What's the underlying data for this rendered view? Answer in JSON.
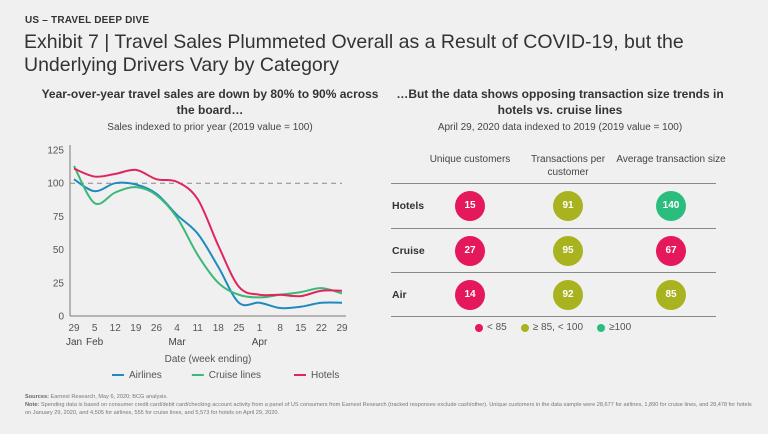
{
  "header": {
    "kicker": "US – TRAVEL DEEP DIVE",
    "title": "Exhibit 7 | Travel Sales Plummeted Overall as a Result of COVID-19, but the Underlying Drivers Vary by Category"
  },
  "left": {
    "heading": "Year-over-year travel sales are down by 80% to 90% across the board…",
    "subheading": "Sales indexed to prior year (2019 value = 100)"
  },
  "right": {
    "heading": "…But the data shows opposing transaction size trends in hotels vs. cruise lines",
    "subheading": "April 29, 2020 data indexed to 2019 (2019 value = 100)",
    "columns": [
      "Unique customers",
      "Transactions per customer",
      "Average transaction size"
    ],
    "rows": [
      {
        "label": "Hotels",
        "values": [
          15,
          91,
          140
        ],
        "bands": [
          "low",
          "mid",
          "high"
        ]
      },
      {
        "label": "Cruise",
        "values": [
          27,
          95,
          67
        ],
        "bands": [
          "low",
          "mid",
          "low"
        ]
      },
      {
        "label": "Air",
        "values": [
          14,
          92,
          85
        ],
        "bands": [
          "low",
          "mid",
          "mid"
        ]
      }
    ],
    "band_colors": {
      "low": "#e4185a",
      "mid": "#a9b320",
      "high": "#2bbd7e"
    },
    "legend": [
      {
        "band": "low",
        "label": "< 85"
      },
      {
        "band": "mid",
        "label": "≥ 85, < 100"
      },
      {
        "band": "high",
        "label": "≥100"
      }
    ]
  },
  "chart_data": {
    "type": "line",
    "title": "Year-over-year travel sales are down by 80% to 90% across the board…",
    "subtitle": "Sales indexed to prior year (2019 value = 100)",
    "xlabel": "Date (week ending)",
    "ylabel": "",
    "ylim": [
      0,
      125
    ],
    "yticks": [
      0,
      25,
      50,
      75,
      100,
      125
    ],
    "x_tick_labels": [
      "29",
      "5",
      "12",
      "19",
      "26",
      "4",
      "11",
      "18",
      "25",
      "1",
      "8",
      "15",
      "22",
      "29"
    ],
    "x_month_labels": [
      {
        "index": 0,
        "label": "Jan"
      },
      {
        "index": 1,
        "label": "Feb"
      },
      {
        "index": 5,
        "label": "Mar"
      },
      {
        "index": 9,
        "label": "Apr"
      }
    ],
    "reference_line": {
      "y": 100,
      "style": "dashed"
    },
    "grid": false,
    "legend_position": "bottom",
    "series": [
      {
        "name": "Airlines",
        "color": "#1f8ac0",
        "values": [
          103,
          94,
          100,
          99,
          92,
          76,
          62,
          37,
          10,
          10,
          6,
          7,
          10,
          10
        ]
      },
      {
        "name": "Cruise lines",
        "color": "#3cb878",
        "values": [
          113,
          85,
          93,
          97,
          91,
          74,
          46,
          25,
          16,
          14,
          16,
          18,
          21,
          17
        ]
      },
      {
        "name": "Hotels",
        "color": "#e0245e",
        "values": [
          111,
          105,
          107,
          110,
          103,
          101,
          88,
          53,
          22,
          16,
          16,
          15,
          19,
          19
        ]
      }
    ]
  },
  "footer": {
    "sources_label": "Sources:",
    "sources_text": "Earnest Research, May 6, 2020; BCG analysis.",
    "note_label": "Note:",
    "note_text": "Spending data is based on consumer credit card/debit card/checking account activity from a panel of US consumers from Earnest Research (tracked responses exclude cash/other). Unique customers in the data sample were 28,677 for airlines, 1,890 for cruise lines, and 28,478 for hotels on January 29, 2020, and 4,505 for airlines, 555 for cruise lines, and 5,573 for hotels on April 29, 2020."
  }
}
